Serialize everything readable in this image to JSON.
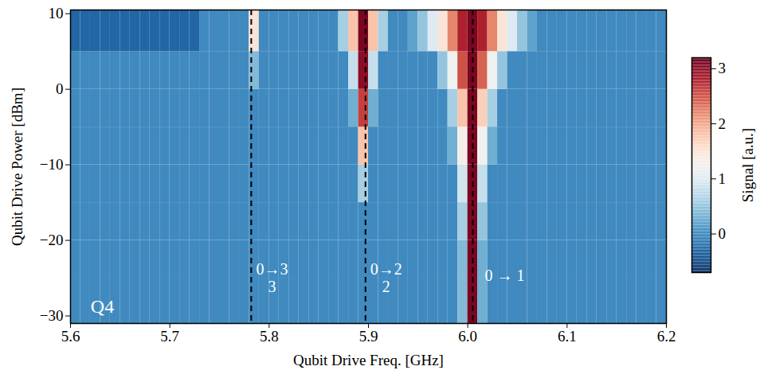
{
  "chart_data": {
    "type": "heatmap",
    "xlabel": "Qubit Drive Freq. [GHz]",
    "ylabel": "Qubit Drive Power [dBm]",
    "xlim": [
      5.6,
      6.2
    ],
    "ylim": [
      -31,
      10.5
    ],
    "xticks": [
      5.6,
      5.7,
      5.8,
      5.9,
      {
        "value": 6.0,
        "label": "6.0"
      },
      6.1,
      6.2
    ],
    "yticks": [
      -30,
      -20,
      -10,
      0,
      10
    ],
    "panel_label": "Q4",
    "x_bins": [
      5.6,
      5.61,
      5.62,
      5.63,
      5.64,
      5.65,
      5.66,
      5.67,
      5.68,
      5.69,
      5.7,
      5.71,
      5.72,
      5.73,
      5.74,
      5.75,
      5.76,
      5.77,
      5.78,
      5.79,
      5.8,
      5.81,
      5.82,
      5.83,
      5.84,
      5.85,
      5.86,
      5.87,
      5.88,
      5.89,
      5.9,
      5.91,
      5.92,
      5.93,
      5.94,
      5.95,
      5.96,
      5.97,
      5.98,
      5.99,
      6.0,
      6.01,
      6.02,
      6.03,
      6.04,
      6.05,
      6.06,
      6.07,
      6.08,
      6.09,
      6.1,
      6.11,
      6.12,
      6.13,
      6.14,
      6.15,
      6.16,
      6.17,
      6.18,
      6.19,
      6.2
    ],
    "y_bins": [
      -31,
      -25,
      -20,
      -15,
      -10,
      -5,
      0,
      5,
      10.5
    ],
    "cells": [
      [
        0,
        0,
        0,
        0,
        0,
        0,
        0,
        0,
        0,
        0,
        0,
        0,
        0,
        0,
        0,
        0,
        0,
        0,
        0,
        0,
        0,
        0,
        0,
        0,
        0,
        0,
        0,
        0,
        0,
        0,
        0,
        0,
        0,
        0,
        0,
        0,
        0,
        0,
        0,
        0.4,
        3.1,
        0.3,
        0,
        0,
        0,
        0,
        0,
        0,
        0,
        0,
        0,
        0,
        0,
        0,
        0,
        0,
        0,
        0,
        0,
        0
      ],
      [
        0,
        0,
        0,
        0,
        0,
        0,
        0,
        0,
        0,
        0,
        0,
        0,
        0,
        0,
        0,
        0,
        0,
        0,
        0,
        0,
        0,
        0,
        0,
        0,
        0,
        0,
        0,
        0,
        0,
        0,
        0,
        0,
        0,
        0,
        0,
        0,
        0,
        0,
        0,
        0.4,
        3.1,
        0.3,
        0,
        0,
        0,
        0,
        0,
        0,
        0,
        0,
        0,
        0,
        0,
        0,
        0,
        0,
        0,
        0,
        0,
        0
      ],
      [
        0,
        0,
        0,
        0,
        0,
        0,
        0,
        0,
        0,
        0,
        0,
        0,
        0,
        0,
        0,
        0,
        0,
        0,
        0,
        0,
        0,
        0,
        0,
        0,
        0,
        0,
        0,
        0,
        0,
        0,
        0,
        0,
        0,
        0,
        0,
        0,
        0,
        0,
        0,
        0.6,
        3.1,
        0.5,
        0,
        0,
        0,
        0,
        0,
        0,
        0,
        0,
        0,
        0,
        0,
        0,
        0,
        0,
        0,
        0,
        0,
        0
      ],
      [
        0,
        0,
        0,
        0,
        0,
        0,
        0,
        0,
        0,
        0,
        0,
        0,
        0,
        0,
        0,
        0,
        0,
        0,
        0,
        0,
        0,
        0,
        0,
        0,
        0,
        0,
        0,
        0,
        0,
        0.6,
        0,
        0,
        0,
        0,
        0,
        0,
        0,
        0,
        0,
        0.9,
        3.1,
        0.8,
        0,
        0,
        0,
        0,
        0,
        0,
        0,
        0,
        0,
        0,
        0,
        0,
        0,
        0,
        0,
        0,
        0,
        0
      ],
      [
        0,
        0,
        0,
        0,
        0,
        0,
        0,
        0,
        0,
        0,
        0,
        0,
        0,
        0,
        0,
        0,
        0,
        0,
        0,
        0,
        0,
        0,
        0,
        0,
        0,
        0,
        0,
        0,
        0,
        1.8,
        0,
        0,
        0,
        0,
        0,
        0,
        0,
        0,
        0.3,
        1.3,
        3.1,
        1.2,
        0.3,
        0,
        0,
        0,
        0,
        0,
        0,
        0,
        0,
        0,
        0,
        0,
        0,
        0,
        0,
        0,
        0,
        0
      ],
      [
        0,
        0,
        0,
        0,
        0,
        0,
        0,
        0,
        0,
        0,
        0,
        0,
        0,
        0,
        0,
        0,
        0,
        0,
        0,
        0,
        0,
        0,
        0,
        0,
        0,
        0,
        0,
        0,
        0.3,
        2.6,
        0.3,
        0,
        0,
        0,
        0,
        0,
        0,
        0,
        0.6,
        1.8,
        3.1,
        1.7,
        0.6,
        0,
        0,
        0,
        0,
        0,
        0,
        0,
        0,
        0,
        0,
        0,
        0,
        0,
        0,
        0,
        0,
        0
      ],
      [
        0,
        0,
        0,
        0,
        0,
        0,
        0,
        0,
        0,
        0,
        0,
        0,
        0,
        0,
        0,
        0,
        0,
        0,
        0.4,
        0,
        0,
        0,
        0,
        0,
        0,
        0,
        0,
        0,
        0.8,
        3.0,
        0.8,
        0,
        0,
        0,
        0,
        0,
        0,
        0.5,
        1.2,
        2.5,
        3.1,
        2.4,
        1.2,
        0.5,
        0,
        0,
        0,
        0,
        0,
        0,
        0,
        0,
        0,
        0,
        0,
        0,
        0,
        0,
        0,
        0
      ],
      [
        -0.3,
        -0.3,
        -0.3,
        -0.3,
        -0.3,
        -0.3,
        -0.3,
        -0.3,
        -0.3,
        -0.3,
        -0.3,
        -0.3,
        -0.3,
        0,
        0,
        0,
        0,
        0,
        1.5,
        0,
        0,
        0,
        0,
        0,
        0,
        0,
        0,
        0.6,
        1.8,
        3.1,
        1.8,
        0.6,
        0,
        0,
        0.2,
        0.5,
        1.0,
        1.5,
        2.2,
        2.8,
        3.1,
        2.8,
        2.2,
        1.5,
        1.0,
        0.5,
        0.2,
        0,
        0,
        0,
        0,
        0,
        0,
        0,
        0,
        0,
        0,
        0,
        0,
        0
      ]
    ],
    "colorbar": {
      "label": "Signal [a.u.]",
      "range": [
        -0.7,
        3.2
      ],
      "ticks": [
        0,
        1,
        2,
        3
      ]
    },
    "annotations": [
      {
        "x": 5.782,
        "text": [
          "0→3",
          "3"
        ]
      },
      {
        "x": 5.897,
        "text": [
          "0→2",
          "2"
        ]
      },
      {
        "x": 6.005,
        "text": [
          "0 → 1"
        ]
      }
    ]
  }
}
